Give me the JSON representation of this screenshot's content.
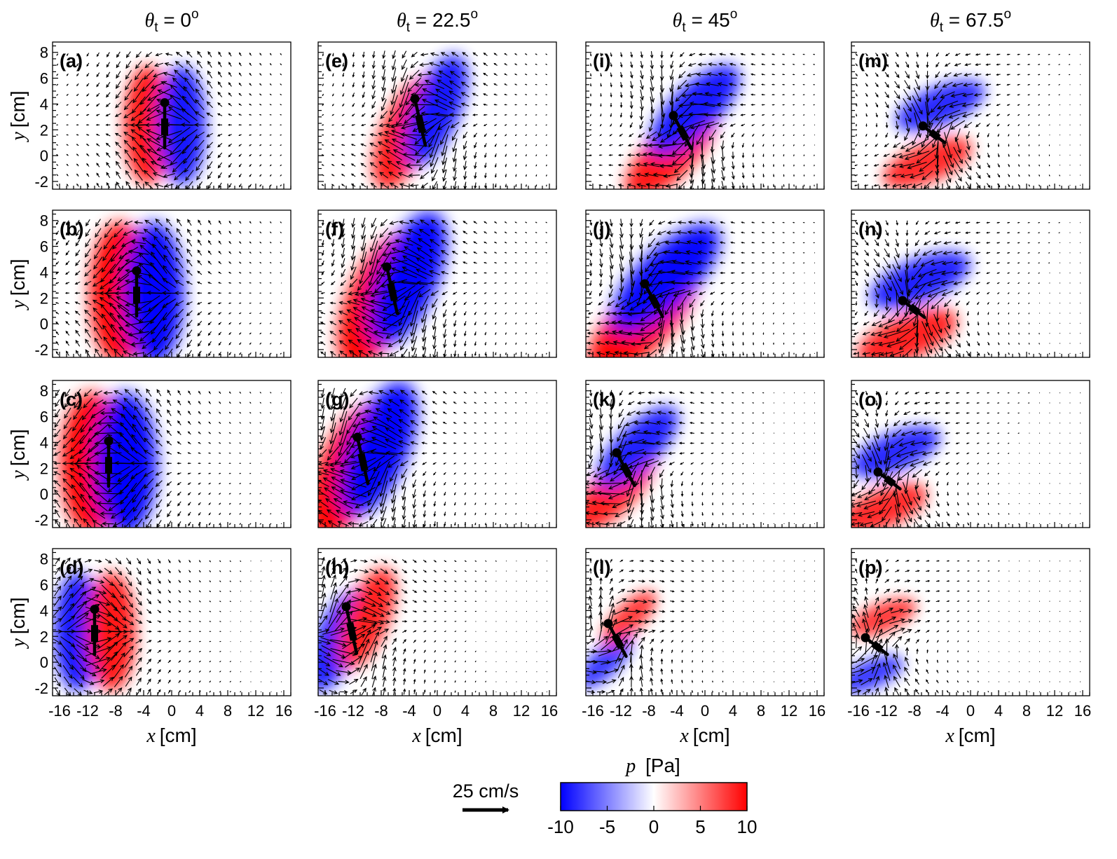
{
  "chart_data": {
    "type": "heatmap",
    "description_quantities": {
      "vector_field": "velocity",
      "color_field": "pressure"
    },
    "column_titles": [
      {
        "symbol": "θ",
        "sub": "t",
        "value": "0",
        "sup": "o"
      },
      {
        "symbol": "θ",
        "sub": "t",
        "value": "22.5",
        "sup": "o"
      },
      {
        "symbol": "θ",
        "sub": "t",
        "value": "45",
        "sup": "o"
      },
      {
        "symbol": "θ",
        "sub": "t",
        "value": "67.5",
        "sup": "o"
      }
    ],
    "panel_labels": [
      [
        "(a)",
        "(b)",
        "(c)",
        "(d)"
      ],
      [
        "(e)",
        "(f)",
        "(g)",
        "(h)"
      ],
      [
        "(i)",
        "(j)",
        "(k)",
        "(l)"
      ],
      [
        "(m)",
        "(n)",
        "(o)",
        "(p)"
      ]
    ],
    "x_axis": {
      "label_var": "x",
      "label_unit": "[cm]",
      "range": [
        -17,
        17
      ],
      "ticks": [
        -16,
        -12,
        -8,
        -4,
        0,
        4,
        8,
        12,
        16
      ]
    },
    "y_axis": {
      "label_var": "y",
      "label_unit": "[cm]",
      "range": [
        -2.6,
        8.8
      ],
      "ticks": [
        -2,
        0,
        2,
        4,
        6,
        8
      ]
    },
    "panels": [
      {
        "label": "(a)",
        "col": 0,
        "row": 0,
        "head": [
          -1,
          4.1
        ],
        "angle": 0,
        "len": 3.5,
        "strength": 1.0,
        "sign": 1
      },
      {
        "label": "(b)",
        "col": 0,
        "row": 1,
        "head": [
          -5,
          4.1
        ],
        "angle": 0,
        "len": 3.5,
        "strength": 1.25,
        "sign": 1
      },
      {
        "label": "(c)",
        "col": 0,
        "row": 2,
        "head": [
          -9,
          4.1
        ],
        "angle": 0,
        "len": 3.5,
        "strength": 1.3,
        "sign": 1
      },
      {
        "label": "(d)",
        "col": 0,
        "row": 3,
        "head": [
          -11,
          4.1
        ],
        "angle": 0,
        "len": 3.5,
        "strength": 1.0,
        "sign": -1
      },
      {
        "label": "(e)",
        "col": 1,
        "row": 0,
        "head": [
          -3.2,
          4.4
        ],
        "angle": 22.5,
        "len": 3.9,
        "strength": 1.0,
        "sign": 1
      },
      {
        "label": "(f)",
        "col": 1,
        "row": 1,
        "head": [
          -7.2,
          4.4
        ],
        "angle": 22.5,
        "len": 3.9,
        "strength": 1.25,
        "sign": 1
      },
      {
        "label": "(g)",
        "col": 1,
        "row": 2,
        "head": [
          -11.4,
          4.4
        ],
        "angle": 22.5,
        "len": 3.9,
        "strength": 1.25,
        "sign": 1
      },
      {
        "label": "(h)",
        "col": 1,
        "row": 3,
        "head": [
          -13,
          4.3
        ],
        "angle": 22.5,
        "len": 3.9,
        "strength": 0.9,
        "sign": -1
      },
      {
        "label": "(i)",
        "col": 2,
        "row": 0,
        "head": [
          -4.5,
          3.1
        ],
        "angle": 45,
        "len": 3.6,
        "strength": 1.0,
        "sign": 1
      },
      {
        "label": "(j)",
        "col": 2,
        "row": 1,
        "head": [
          -8.6,
          3.1
        ],
        "angle": 45,
        "len": 3.6,
        "strength": 1.2,
        "sign": 1
      },
      {
        "label": "(k)",
        "col": 2,
        "row": 2,
        "head": [
          -12.6,
          3.2
        ],
        "angle": 45,
        "len": 3.6,
        "strength": 0.9,
        "sign": 1
      },
      {
        "label": "(l)",
        "col": 2,
        "row": 3,
        "head": [
          -13.8,
          3.0
        ],
        "angle": 45,
        "len": 3.6,
        "strength": 0.6,
        "sign": -1
      },
      {
        "label": "(m)",
        "col": 3,
        "row": 0,
        "head": [
          -6.8,
          2.3
        ],
        "angle": 67.5,
        "len": 3.4,
        "strength": 0.8,
        "sign": 1
      },
      {
        "label": "(n)",
        "col": 3,
        "row": 1,
        "head": [
          -9.7,
          1.8
        ],
        "angle": 67.5,
        "len": 3.4,
        "strength": 0.9,
        "sign": 1
      },
      {
        "label": "(o)",
        "col": 3,
        "row": 2,
        "head": [
          -13.2,
          1.7
        ],
        "angle": 67.5,
        "len": 3.4,
        "strength": 0.8,
        "sign": 1
      },
      {
        "label": "(p)",
        "col": 3,
        "row": 3,
        "head": [
          -15,
          1.9
        ],
        "angle": 67.5,
        "len": 3.4,
        "strength": 0.6,
        "sign": -1
      }
    ],
    "colorbar": {
      "title_var": "p",
      "title_unit": "[Pa]",
      "range": [
        -10,
        10
      ],
      "ticks": [
        -10,
        -5,
        0,
        5,
        10
      ],
      "colors": [
        "#0000ff",
        "#ffffff",
        "#ff0000"
      ]
    },
    "reference_vector": {
      "label": "25 cm/s"
    }
  }
}
